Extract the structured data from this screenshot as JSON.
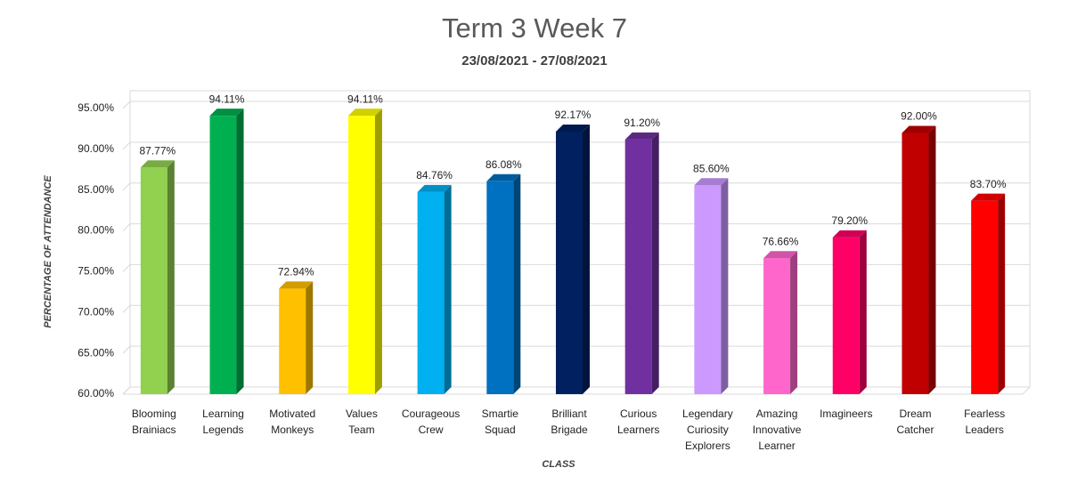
{
  "chart_data": {
    "type": "bar3d",
    "title": "Term 3 Week 7",
    "subtitle": "23/08/2021 - 27/08/2021",
    "y_label": "PERCENTAGE OF ATTENDANCE",
    "x_label": "CLASS",
    "categories": [
      "Blooming Brainiacs",
      "Learning Legends",
      "Motivated Monkeys",
      "Values Team",
      "Courageous Crew",
      "Smartie Squad",
      "Brilliant Brigade",
      "Curious Learners",
      "Legendary Curiosity Explorers",
      "Amazing Innovative Learner",
      "Imagineers",
      "Dream Catcher",
      "Fearless Leaders"
    ],
    "values": [
      87.77,
      94.11,
      72.94,
      94.11,
      84.76,
      86.08,
      92.17,
      91.2,
      85.6,
      76.66,
      79.2,
      92.0,
      83.7
    ],
    "value_labels": [
      "87.77%",
      "94.11%",
      "72.94%",
      "94.11%",
      "84.76%",
      "86.08%",
      "92.17%",
      "91.20%",
      "85.60%",
      "76.66%",
      "79.20%",
      "92.00%",
      "83.70%"
    ],
    "colors": [
      "#92d050",
      "#00b050",
      "#ffc000",
      "#ffff00",
      "#00b0f0",
      "#0070c0",
      "#002060",
      "#7030a0",
      "#cc99ff",
      "#ff66cc",
      "#ff0066",
      "#c00000",
      "#ff0000"
    ],
    "ylim": [
      60,
      95
    ],
    "yticks": [
      {
        "value": 60,
        "label": "60.00%"
      },
      {
        "value": 65,
        "label": "65.00%"
      },
      {
        "value": 70,
        "label": "70.00%"
      },
      {
        "value": 75,
        "label": "75.00%"
      },
      {
        "value": 80,
        "label": "80.00%"
      },
      {
        "value": 85,
        "label": "85.00%"
      },
      {
        "value": 90,
        "label": "90.00%"
      },
      {
        "value": 95,
        "label": "95.00%"
      }
    ],
    "grid": true
  }
}
